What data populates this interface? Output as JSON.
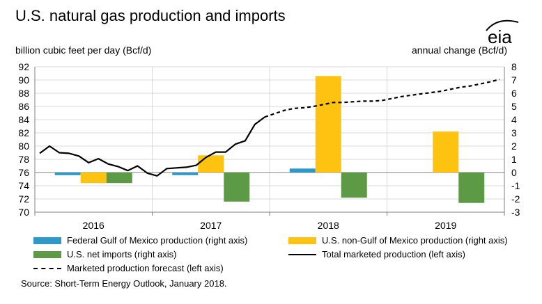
{
  "header": {
    "title": "U.S. natural gas production and imports",
    "left_unit": "billion cubic feet per day (Bcf/d)",
    "right_unit": "annual change (Bcf/d)",
    "logo_text": "eia"
  },
  "legend": {
    "gom": "Federal Gulf of Mexico production (right axis)",
    "nongom": "U.S. non-Gulf of Mexico production (right axis)",
    "imports": "U.S. net imports (right axis)",
    "total": "Total marketed production (left axis)",
    "forecast": "Marketed production forecast (left axis)"
  },
  "source": "Source: Short-Term Energy Outlook, January 2018.",
  "colors": {
    "gom": "#2e98c9",
    "nongom": "#fec311",
    "imports": "#5c9a45",
    "line": "#000000",
    "grid": "#d9d9d9"
  },
  "chart_data": {
    "type": "bar",
    "categories": [
      "2016",
      "2017",
      "2018",
      "2019"
    ],
    "left_axis": {
      "label": "billion cubic feet per day (Bcf/d)",
      "ylim": [
        70,
        92
      ],
      "ticks": [
        70,
        72,
        74,
        76,
        78,
        80,
        82,
        84,
        86,
        88,
        90,
        92
      ]
    },
    "right_axis": {
      "label": "annual change (Bcf/d)",
      "ylim": [
        -3,
        8
      ],
      "ticks": [
        -3,
        -2,
        -1,
        0,
        1,
        2,
        3,
        4,
        5,
        6,
        7,
        8
      ]
    },
    "bar_series": [
      {
        "name": "Federal Gulf of Mexico production (right axis)",
        "color_key": "gom",
        "values": [
          -0.2,
          -0.2,
          0.3,
          0
        ]
      },
      {
        "name": "U.S. non-Gulf of Mexico production (right axis)",
        "color_key": "nongom",
        "values": [
          -0.8,
          1.3,
          7.3,
          3.1
        ]
      },
      {
        "name": "U.S. net imports (right axis)",
        "color_key": "imports",
        "values": [
          -0.8,
          -2.2,
          -1.9,
          -2.3
        ]
      }
    ],
    "line_series": [
      {
        "name": "Total marketed production (left axis)",
        "style": "solid",
        "x": [
          "2016-01",
          "2016-02",
          "2016-03",
          "2016-04",
          "2016-05",
          "2016-06",
          "2016-07",
          "2016-08",
          "2016-09",
          "2016-10",
          "2016-11",
          "2016-12",
          "2017-01",
          "2017-02",
          "2017-03",
          "2017-04",
          "2017-05",
          "2017-06",
          "2017-07",
          "2017-08",
          "2017-09",
          "2017-10",
          "2017-11",
          "2017-12"
        ],
        "y": [
          78.9,
          80.0,
          79.0,
          78.9,
          78.5,
          77.5,
          78.1,
          77.3,
          76.9,
          76.3,
          77.0,
          75.9,
          75.5,
          76.6,
          76.7,
          76.8,
          77.1,
          78.3,
          79.1,
          79.1,
          80.3,
          80.8,
          83.3,
          84.4
        ]
      },
      {
        "name": "Marketed production forecast (left axis)",
        "style": "dashed",
        "x": [
          "2017-12",
          "2018-01",
          "2018-02",
          "2018-03",
          "2018-04",
          "2018-05",
          "2018-06",
          "2018-07",
          "2018-08",
          "2018-09",
          "2018-10",
          "2018-11",
          "2018-12",
          "2019-01",
          "2019-02",
          "2019-03",
          "2019-04",
          "2019-05",
          "2019-06",
          "2019-07",
          "2019-08",
          "2019-09",
          "2019-10",
          "2019-11",
          "2019-12"
        ],
        "y": [
          84.4,
          84.9,
          85.4,
          85.7,
          85.8,
          86.0,
          86.3,
          86.6,
          86.6,
          86.7,
          86.8,
          86.8,
          86.9,
          87.2,
          87.5,
          87.7,
          87.9,
          88.1,
          88.3,
          88.6,
          88.9,
          89.1,
          89.4,
          89.7,
          90.1
        ]
      }
    ],
    "grid": true
  }
}
